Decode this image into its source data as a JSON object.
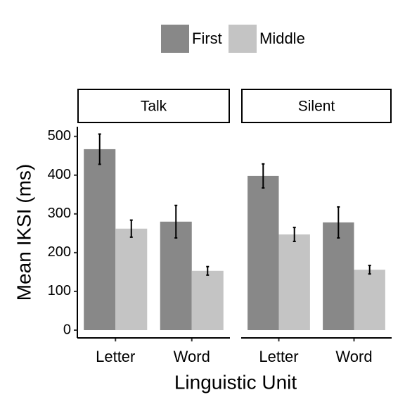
{
  "chart_data": {
    "type": "bar",
    "xlabel": "Linguistic Unit",
    "ylabel": "Mean IKSI (ms)",
    "facets": [
      "Talk",
      "Silent"
    ],
    "categories": [
      "Letter",
      "Word"
    ],
    "series": [
      {
        "name": "First",
        "color": "#888888",
        "values": [
          [
            467,
            280
          ],
          [
            398,
            278
          ]
        ],
        "errors": [
          [
            39,
            42
          ],
          [
            31,
            40
          ]
        ]
      },
      {
        "name": "Middle",
        "color": "#c4c4c4",
        "values": [
          [
            262,
            153
          ],
          [
            247,
            156
          ]
        ],
        "errors": [
          [
            22,
            11
          ],
          [
            18,
            11
          ]
        ]
      }
    ],
    "ylim": [
      -20,
      525
    ],
    "yticks": [
      0,
      100,
      200,
      300,
      400,
      500
    ]
  }
}
